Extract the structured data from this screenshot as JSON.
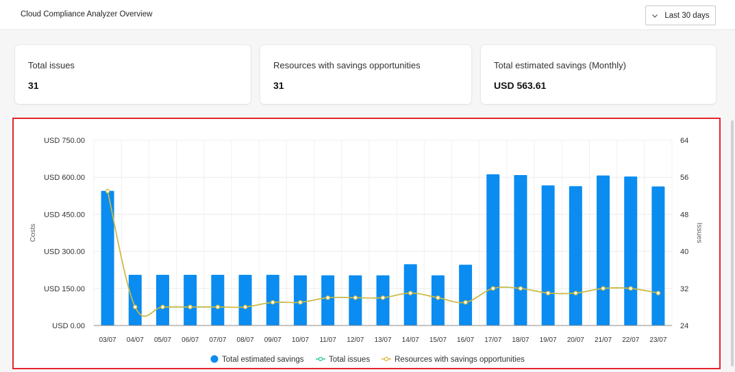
{
  "header": {
    "title": "Cloud Compliance Analyzer Overview",
    "range_label": "Last 30 days"
  },
  "cards": [
    {
      "label": "Total issues",
      "value": "31"
    },
    {
      "label": "Resources with savings opportunities",
      "value": "31"
    },
    {
      "label": "Total estimated savings (Monthly)",
      "value": "USD 563.61"
    }
  ],
  "colors": {
    "bar": "#0b8cf0",
    "total_issues_line": "#25c7a0",
    "resources_line": "#d8b83a",
    "highlight_border": "#e3232c"
  },
  "chart_data": {
    "type": "bar",
    "categories": [
      "03/07",
      "04/07",
      "05/07",
      "06/07",
      "07/07",
      "08/07",
      "09/07",
      "10/07",
      "11/07",
      "12/07",
      "13/07",
      "14/07",
      "15/07",
      "16/07",
      "17/07",
      "18/07",
      "19/07",
      "20/07",
      "21/07",
      "22/07",
      "23/07"
    ],
    "series": [
      {
        "name": "Total estimated savings",
        "type": "bar",
        "axis": "left",
        "values": [
          545,
          205,
          205,
          205,
          205,
          205,
          205,
          203,
          203,
          203,
          203,
          248,
          203,
          246,
          612,
          609,
          567,
          564,
          607,
          603,
          563
        ]
      },
      {
        "name": "Total issues",
        "type": "line",
        "axis": "right",
        "values": [
          53,
          28,
          28,
          28,
          28,
          28,
          29,
          29,
          30,
          30,
          30,
          31,
          30,
          29,
          32,
          32,
          31,
          31,
          32,
          32,
          31
        ]
      },
      {
        "name": "Resources with savings opportunities",
        "type": "line",
        "axis": "right",
        "values": [
          53,
          28,
          28,
          28,
          28,
          28,
          29,
          29,
          30,
          30,
          30,
          31,
          30,
          29,
          32,
          32,
          31,
          31,
          32,
          32,
          31
        ]
      }
    ],
    "ylabel": "Costs",
    "y2label": "Issues",
    "ylim": [
      0,
      750
    ],
    "y2lim": [
      24,
      64
    ],
    "yticks": [
      "USD 0.00",
      "USD 150.00",
      "USD 300.00",
      "USD 450.00",
      "USD 600.00",
      "USD 750.00"
    ],
    "y2ticks": [
      "24",
      "32",
      "40",
      "48",
      "56",
      "64"
    ],
    "grid": true,
    "legend_position": "bottom"
  }
}
